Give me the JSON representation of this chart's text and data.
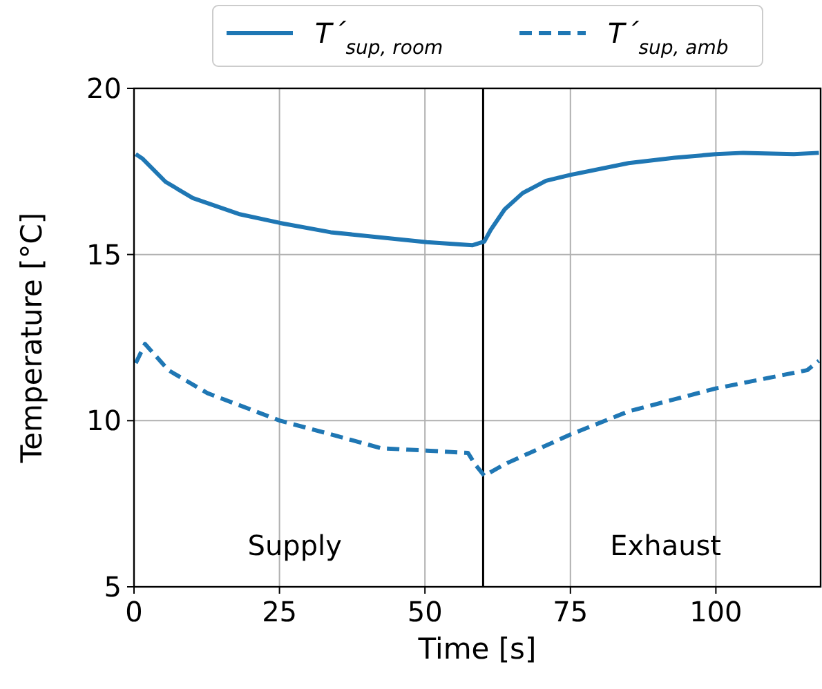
{
  "chart_data": {
    "type": "line",
    "xlabel": "Time [s]",
    "ylabel": "Temperature [°C]",
    "xlim": [
      0,
      118
    ],
    "xticks": [
      0,
      25,
      50,
      75,
      100
    ],
    "ylim": [
      5,
      20
    ],
    "yticks": [
      5,
      10,
      15,
      20
    ],
    "grid": true,
    "legend": "top",
    "marker": "none",
    "series": [
      {
        "name": "T´$_{sup, room}$",
        "color": "#1f77b4",
        "line_style": "solid",
        "x": [
          0.3,
          1.5,
          5.4,
          10.1,
          18,
          25.1,
          33.8,
          41.6,
          50.3,
          58.2,
          60.2,
          61.3,
          63.7,
          66.8,
          70.8,
          75.1,
          85,
          92.9,
          100,
          104.7,
          113.4,
          117.7
        ],
        "values": [
          18.02,
          17.88,
          17.19,
          16.7,
          16.22,
          15.95,
          15.67,
          15.53,
          15.37,
          15.28,
          15.39,
          15.74,
          16.36,
          16.85,
          17.22,
          17.4,
          17.75,
          17.91,
          18.02,
          18.06,
          18.02,
          18.06
        ]
      },
      {
        "name": "T´$_{sup, amb}$",
        "color": "#1f77b4",
        "line_style": "dashed",
        "x": [
          0.3,
          1.9,
          5.9,
          12.6,
          25.1,
          33.8,
          42.5,
          50.3,
          57.4,
          58.6,
          60.2,
          63.7,
          75.1,
          85,
          100,
          115.7,
          117.7
        ],
        "values": [
          11.73,
          12.31,
          11.52,
          10.83,
          10.0,
          9.59,
          9.17,
          9.1,
          9.03,
          8.69,
          8.34,
          8.69,
          9.59,
          10.28,
          10.97,
          11.52,
          11.8
        ]
      }
    ],
    "ref_lines": [
      {
        "axis": "x",
        "value": 60,
        "color": "#000000"
      }
    ],
    "annotations": [
      "Supply",
      "Exhaust"
    ]
  }
}
